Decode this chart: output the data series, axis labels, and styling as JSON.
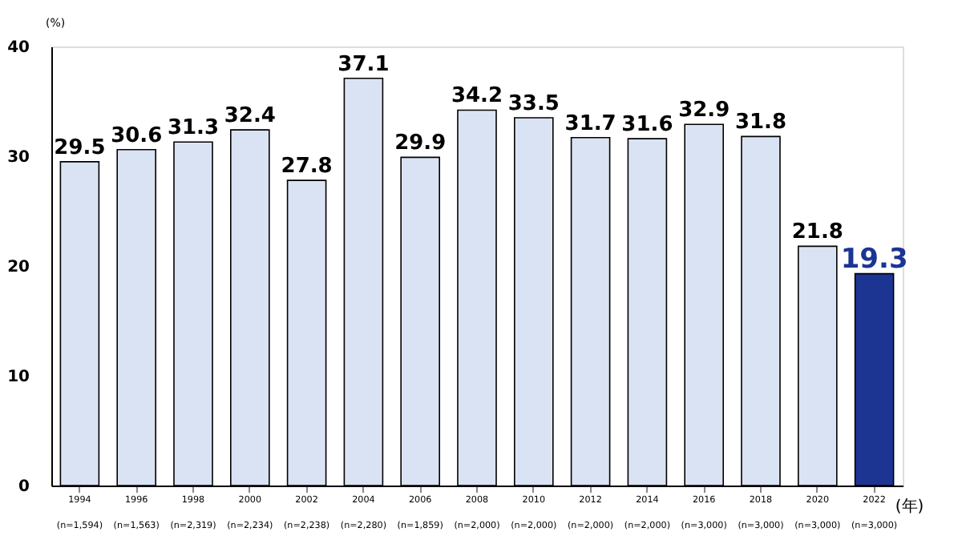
{
  "chart_data": {
    "type": "bar",
    "categories": [
      "1994\n(n=1,594)",
      "1996\n(n=1,563)",
      "1998\n(n=2,319)",
      "2000\n(n=2,234)",
      "2002\n(n=2,238)",
      "2004\n(n=2,280)",
      "2006\n(n=1,859)",
      "2008\n(n=2,000)",
      "2010\n(n=2,000)",
      "2012\n(n=2,000)",
      "2014\n(n=2,000)",
      "2016\n(n=3,000)",
      "2018\n(n=3,000)",
      "2020\n(n=3,000)",
      "2022\n(n=3,000)"
    ],
    "values": [
      29.5,
      30.6,
      31.3,
      32.4,
      27.8,
      37.1,
      29.9,
      34.2,
      33.5,
      31.7,
      31.6,
      32.9,
      31.8,
      21.8,
      19.3
    ],
    "colors": [
      "#dae3f3",
      "#dae3f3",
      "#dae3f3",
      "#dae3f3",
      "#dae3f3",
      "#dae3f3",
      "#dae3f3",
      "#dae3f3",
      "#dae3f3",
      "#dae3f3",
      "#dae3f3",
      "#dae3f3",
      "#dae3f3",
      "#dae3f3",
      "#1c3593"
    ],
    "ylabel": "(%)",
    "xlabel": "(年)",
    "ylim": [
      0,
      40
    ],
    "yticks": [
      0,
      10,
      20,
      30,
      40
    ],
    "data_labels": true,
    "grid": false
  }
}
